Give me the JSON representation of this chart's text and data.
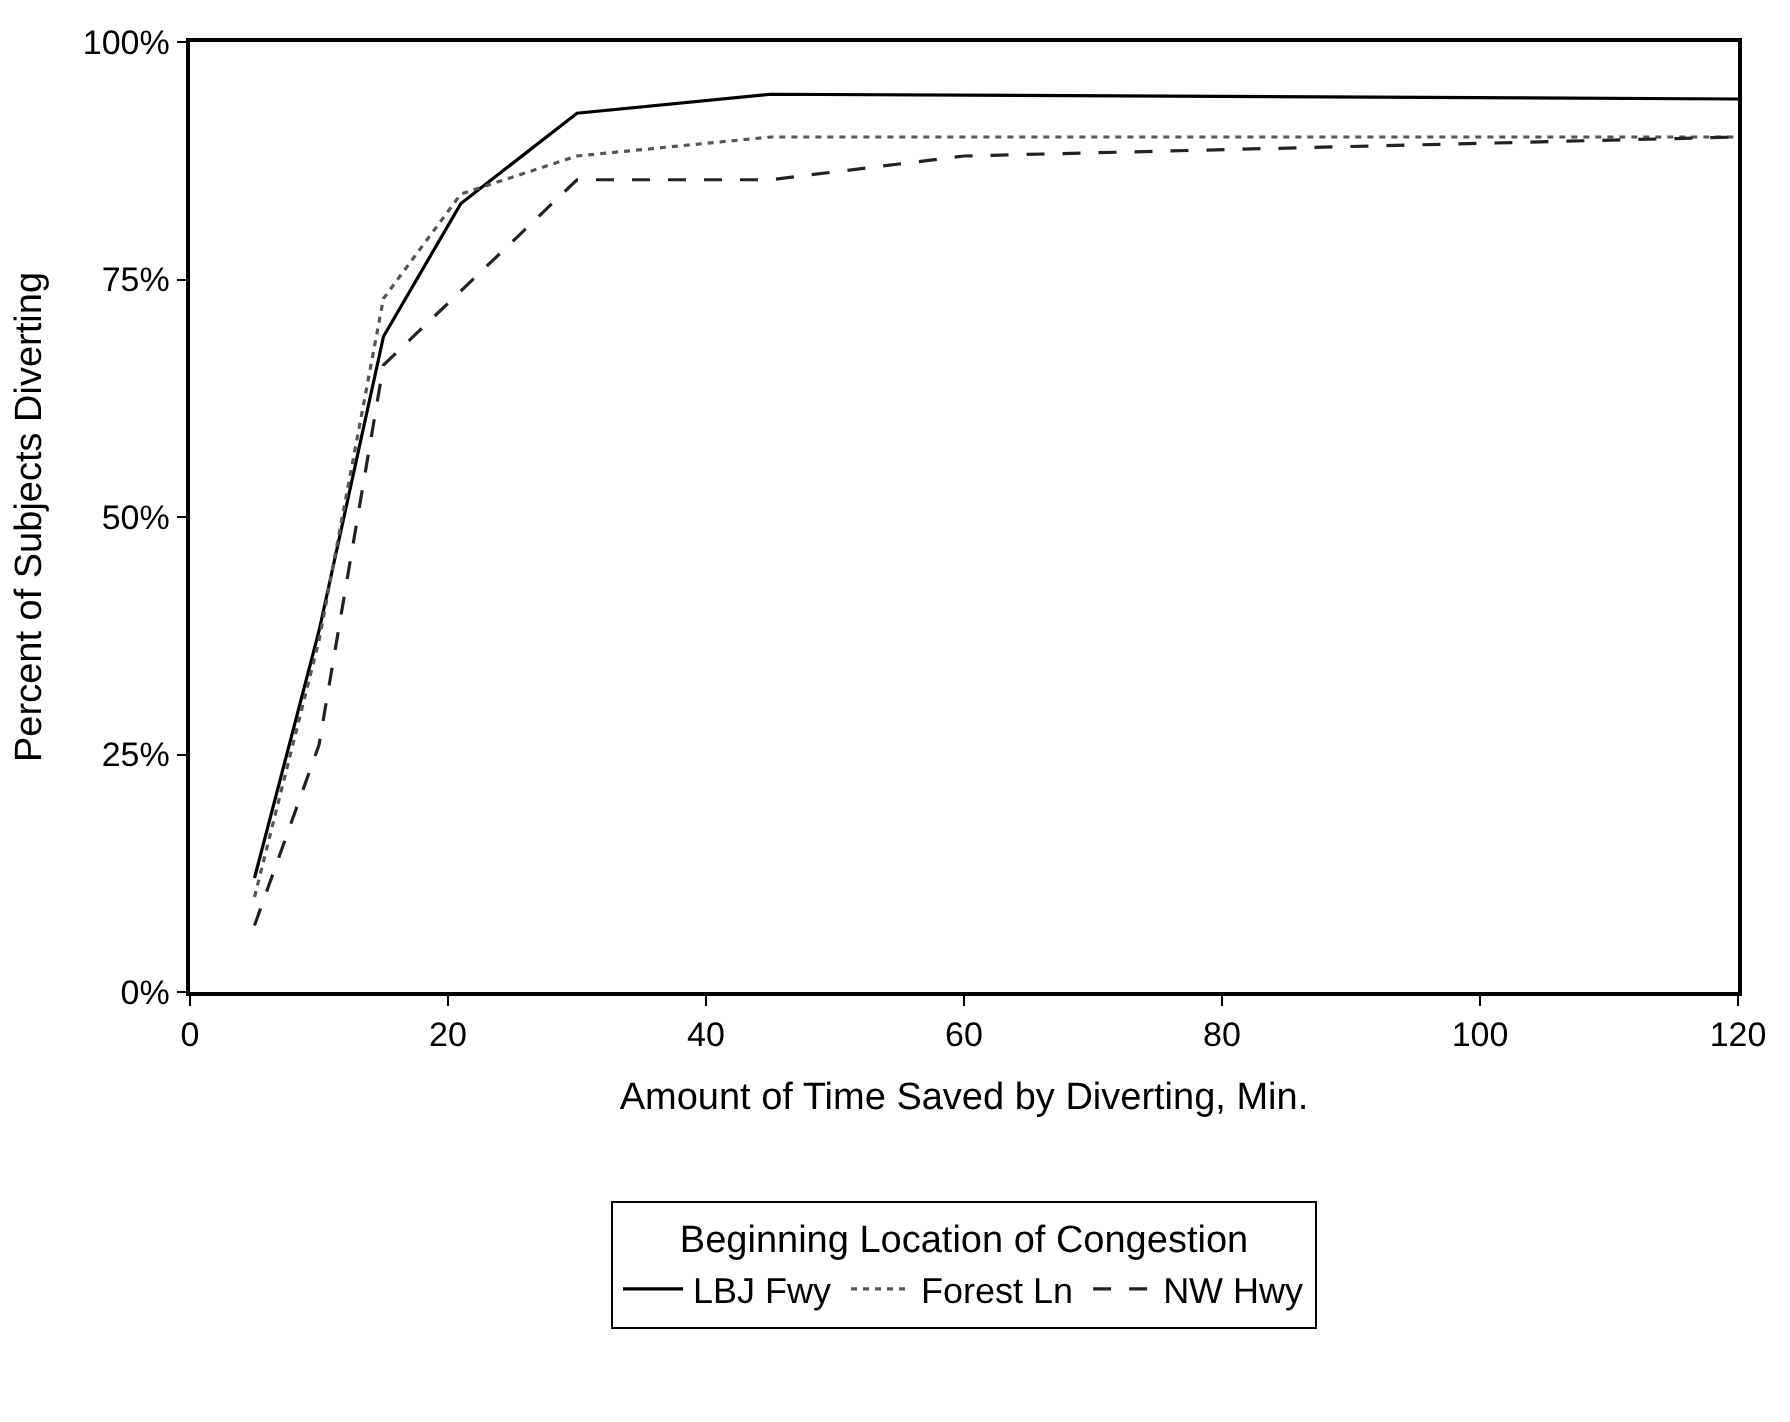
{
  "chart_data": {
    "type": "line",
    "xlabel": "Amount of Time Saved by Diverting, Min.",
    "ylabel": "Percent of Subjects Diverting",
    "legend_title": "Beginning Location of Congestion",
    "xlim": [
      0,
      120
    ],
    "xticks": [
      0,
      20,
      40,
      60,
      80,
      100,
      120
    ],
    "ylim": [
      0,
      100
    ],
    "yticks": [
      {
        "value": 0,
        "label": "0%"
      },
      {
        "value": 25,
        "label": "25%"
      },
      {
        "value": 50,
        "label": "50%"
      },
      {
        "value": 75,
        "label": "75%"
      },
      {
        "value": 100,
        "label": "100%"
      }
    ],
    "legend": "bottom",
    "marker": "none",
    "series": [
      {
        "name": "LBJ Fwy",
        "color": "#000000",
        "line_style": "solid",
        "x": [
          5,
          10,
          15,
          21,
          30,
          45,
          120
        ],
        "values": [
          12,
          38,
          69,
          83,
          92.5,
          94.5,
          94
        ]
      },
      {
        "name": "Forest Ln",
        "color": "#555555",
        "line_style": "dotted",
        "x": [
          5,
          10,
          15,
          21,
          30,
          45,
          120
        ],
        "values": [
          10,
          37,
          73,
          84,
          88,
          90,
          90
        ]
      },
      {
        "name": "NW Hwy",
        "color": "#222222",
        "line_style": "dashed",
        "x": [
          5,
          10,
          15,
          30,
          45,
          60,
          120
        ],
        "values": [
          7,
          26,
          66,
          85.5,
          85.5,
          88,
          90
        ]
      }
    ]
  }
}
